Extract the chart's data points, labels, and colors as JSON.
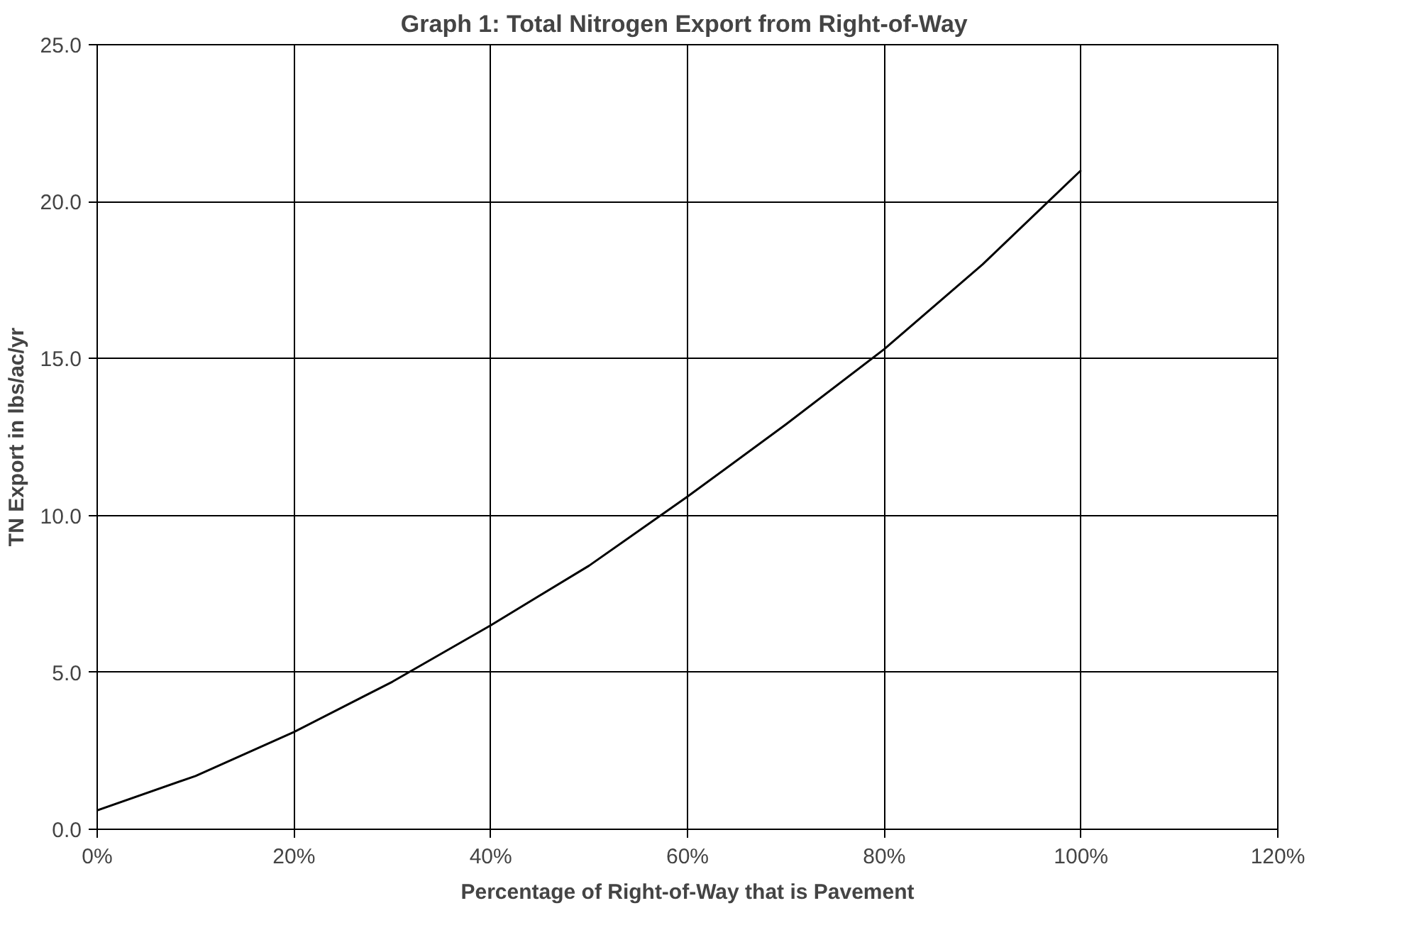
{
  "chart_data": {
    "type": "line",
    "title": "Graph 1:  Total Nitrogen Export from Right-of-Way",
    "xlabel": "Percentage of Right-of-Way that is Pavement",
    "ylabel": "TN Export in lbs/ac/yr",
    "x": [
      0,
      10,
      20,
      30,
      40,
      50,
      60,
      70,
      80,
      90,
      100
    ],
    "series": [
      {
        "color": "#000000",
        "values": [
          0.6,
          1.7,
          3.1,
          4.7,
          6.5,
          8.4,
          10.6,
          12.9,
          15.3,
          18.0,
          21.0
        ]
      }
    ],
    "xlim": [
      0,
      120
    ],
    "xticks": [
      {
        "value": 0,
        "label": "0%"
      },
      {
        "value": 20,
        "label": "20%"
      },
      {
        "value": 40,
        "label": "40%"
      },
      {
        "value": 60,
        "label": "60%"
      },
      {
        "value": 80,
        "label": "80%"
      },
      {
        "value": 100,
        "label": "100%"
      },
      {
        "value": 120,
        "label": "120%"
      }
    ],
    "ylim": [
      0,
      25
    ],
    "yticks": [
      {
        "value": 0,
        "label": "0.0"
      },
      {
        "value": 5,
        "label": "5.0"
      },
      {
        "value": 10,
        "label": "10.0"
      },
      {
        "value": 15,
        "label": "15.0"
      },
      {
        "value": 20,
        "label": "20.0"
      },
      {
        "value": 25,
        "label": "25.0"
      }
    ],
    "grid": true,
    "marker": "none",
    "line_style": "solid"
  }
}
